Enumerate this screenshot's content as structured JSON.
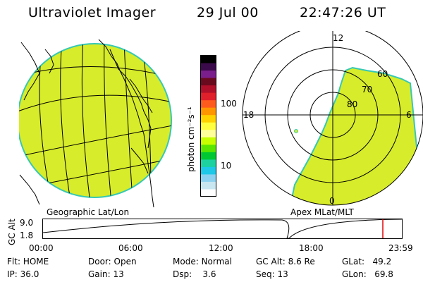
{
  "header": {
    "title": "Ultraviolet Imager",
    "date": "29 Jul 00",
    "time": "22:47:26 UT"
  },
  "colorbar": {
    "unit_label": "photon cm⁻²s⁻¹",
    "ticks": [
      "100",
      "10"
    ],
    "colors": [
      "#000000",
      "#3a0a4a",
      "#7a1e8c",
      "#6a0a1e",
      "#b0102a",
      "#e0202a",
      "#ff5a1e",
      "#ff9600",
      "#ffd200",
      "#ffff40",
      "#ffff9a",
      "#c8ff00",
      "#5ae600",
      "#00c832",
      "#1ed2a0",
      "#1ec8e6",
      "#8cd2f0",
      "#c8e6f0",
      "#ffffff"
    ]
  },
  "left_panel": {
    "label": "Geographic Lat/Lon"
  },
  "right_panel": {
    "label": "Apex MLat/MLT",
    "mlt_labels": {
      "top": "12",
      "left": "18",
      "right": "6",
      "bottom": "0"
    },
    "lat_labels": [
      "60",
      "70",
      "80"
    ]
  },
  "altitude_plot": {
    "axis_label": "GC Alt",
    "y_ticks": [
      "9.0",
      "1.8"
    ],
    "x_ticks": [
      "00:00",
      "06:00",
      "12:00",
      "18:00",
      "23:59"
    ],
    "marker_time_fraction": 0.947,
    "marker_color": "#e00000"
  },
  "status": {
    "row1": [
      {
        "label": "Flt:",
        "value": "HOME"
      },
      {
        "label": "Door:",
        "value": "Open"
      },
      {
        "label": "Mode:",
        "value": "Normal"
      },
      {
        "label": "GC Alt:",
        "value": "8.6 Re"
      },
      {
        "label": "GLat:",
        "value": "49.2"
      }
    ],
    "row2": [
      {
        "label": "IP:",
        "value": "36.0"
      },
      {
        "label": "Gain:",
        "value": "13"
      },
      {
        "label": "Dsp:",
        "value": "3.6"
      },
      {
        "label": "Seq:",
        "value": "13"
      },
      {
        "label": "GLon:",
        "value": "69.8"
      }
    ]
  },
  "image_fill_color": "#d7ec2a",
  "image_edge_color": "#36c8b4"
}
